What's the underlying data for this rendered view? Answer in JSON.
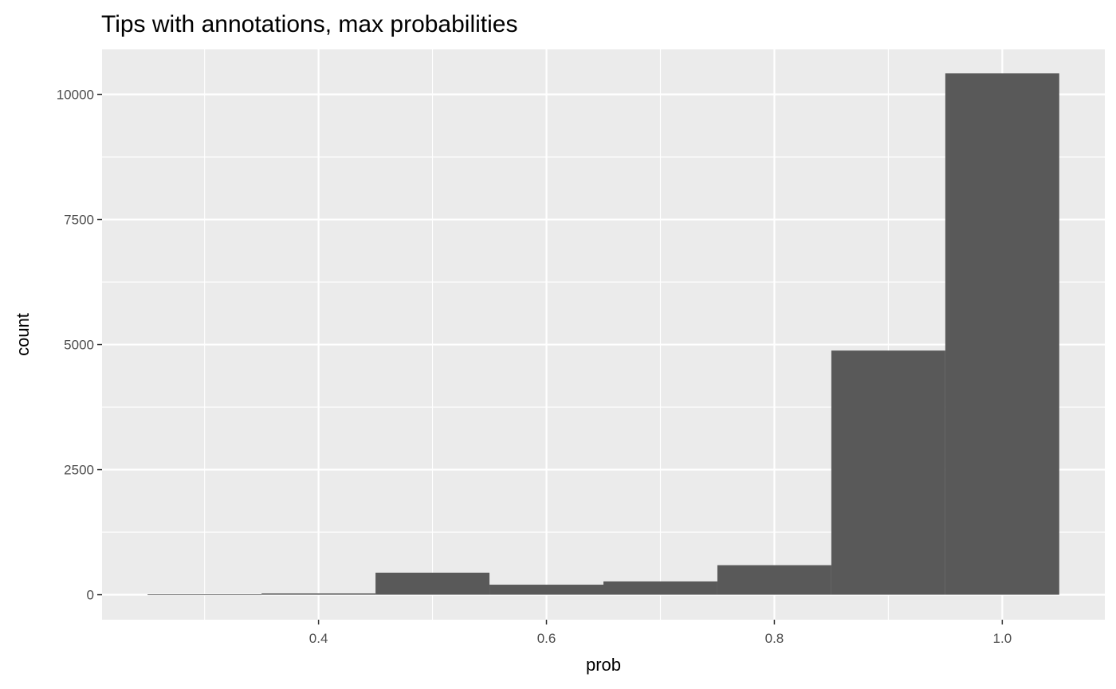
{
  "chart_data": {
    "type": "bar",
    "title": "Tips with annotations, max probabilities",
    "xlabel": "prob",
    "ylabel": "count",
    "bins": [
      {
        "x0": 0.25,
        "x1": 0.35,
        "count": 5
      },
      {
        "x0": 0.35,
        "x1": 0.45,
        "count": 25
      },
      {
        "x0": 0.45,
        "x1": 0.55,
        "count": 440
      },
      {
        "x0": 0.55,
        "x1": 0.65,
        "count": 200
      },
      {
        "x0": 0.65,
        "x1": 0.75,
        "count": 265
      },
      {
        "x0": 0.75,
        "x1": 0.85,
        "count": 590
      },
      {
        "x0": 0.85,
        "x1": 0.95,
        "count": 4880
      },
      {
        "x0": 0.95,
        "x1": 1.05,
        "count": 10420
      }
    ],
    "xlim": [
      0.21,
      1.09
    ],
    "ylim": [
      -500,
      10900
    ],
    "x_ticks": [
      {
        "value": 0.4,
        "label": "0.4"
      },
      {
        "value": 0.6,
        "label": "0.6"
      },
      {
        "value": 0.8,
        "label": "0.8"
      },
      {
        "value": 1.0,
        "label": "1.0"
      }
    ],
    "x_minor_ticks": [
      0.3,
      0.5,
      0.7,
      0.9
    ],
    "y_ticks": [
      {
        "value": 0,
        "label": "0"
      },
      {
        "value": 2500,
        "label": "2500"
      },
      {
        "value": 5000,
        "label": "5000"
      },
      {
        "value": 7500,
        "label": "7500"
      },
      {
        "value": 10000,
        "label": "10000"
      }
    ],
    "y_minor_ticks": [
      1250,
      3750,
      6250,
      8750
    ],
    "grid": true,
    "colors": {
      "panel": "#ebebeb",
      "grid": "#ffffff",
      "bar": "#595959"
    }
  }
}
